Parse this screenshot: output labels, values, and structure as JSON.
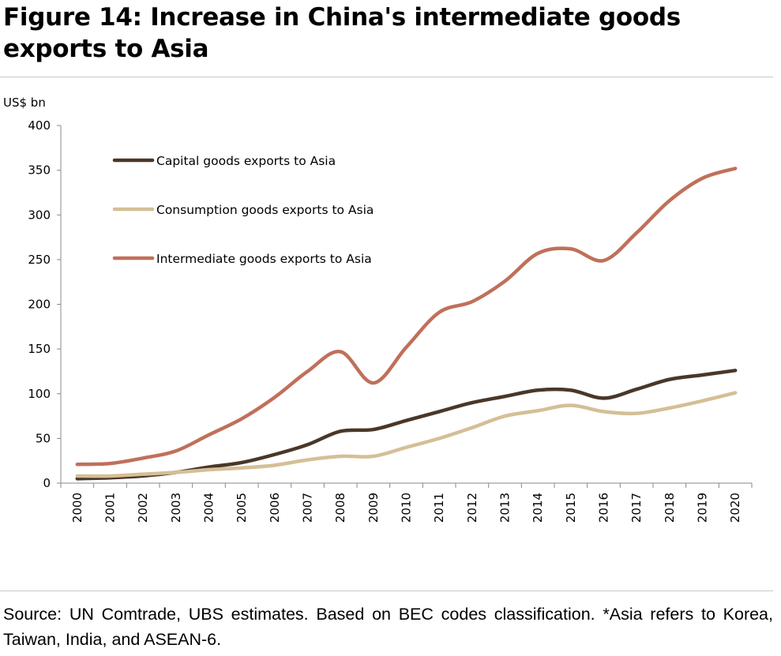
{
  "title": "Figure 14: Increase in China's intermediate goods exports to Asia",
  "source": "Source: UN Comtrade, UBS estimates. Based on BEC codes classification. *Asia refers to Korea, Taiwan, India, and ASEAN-6.",
  "chart_data": {
    "type": "line",
    "y_unit_label": "US$ bn",
    "ylim": [
      0,
      400
    ],
    "yticks": [
      0,
      50,
      100,
      150,
      200,
      250,
      300,
      350,
      400
    ],
    "x": [
      "2000",
      "2001",
      "2002",
      "2003",
      "2004",
      "2005",
      "2006",
      "2007",
      "2008",
      "2009",
      "2010",
      "2011",
      "2012",
      "2013",
      "2014",
      "2015",
      "2016",
      "2017",
      "2018",
      "2019",
      "2020"
    ],
    "grid": false,
    "legend_position": "top-left",
    "series": [
      {
        "name": "Capital goods exports to Asia",
        "color": "#4a3728",
        "values": [
          5,
          6,
          8,
          12,
          18,
          23,
          32,
          43,
          58,
          60,
          70,
          80,
          90,
          97,
          104,
          104,
          95,
          105,
          116,
          121,
          126
        ]
      },
      {
        "name": "Consumption goods exports to Asia",
        "color": "#d4bf96",
        "values": [
          8,
          8,
          10,
          12,
          15,
          17,
          20,
          26,
          30,
          30,
          40,
          50,
          62,
          75,
          81,
          87,
          80,
          78,
          84,
          92,
          101
        ]
      },
      {
        "name": "Intermediate goods exports to Asia",
        "color": "#c0705a",
        "values": [
          21,
          22,
          28,
          36,
          54,
          72,
          96,
          125,
          147,
          112,
          152,
          191,
          203,
          226,
          257,
          262,
          249,
          280,
          316,
          341,
          352
        ]
      }
    ]
  }
}
